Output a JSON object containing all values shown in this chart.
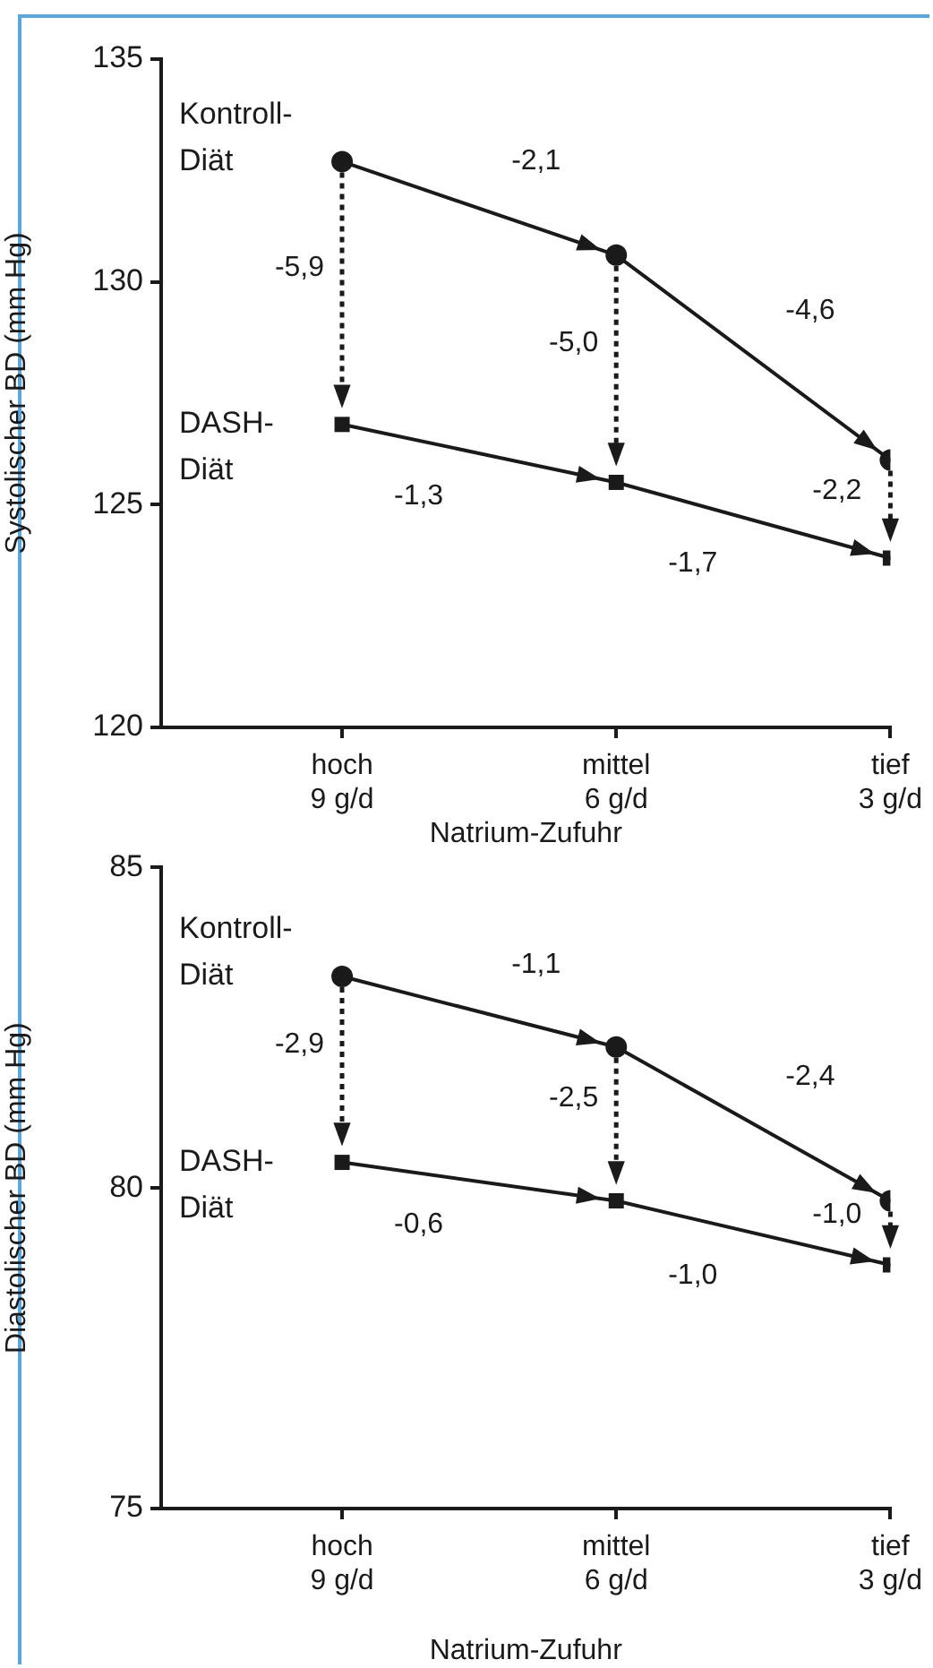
{
  "chart_data": [
    {
      "type": "line",
      "ylabel": "Systolischer BD (mm Hg)",
      "xlabel": "Natrium-Zufuhr",
      "categories": [
        "hoch\n9 g/d",
        "mittel\n6 g/d",
        "tief\n3 g/d"
      ],
      "ylim": [
        120,
        135
      ],
      "yticks": [
        120,
        125,
        130,
        135
      ],
      "grid": false,
      "legend": false,
      "line_style": "solid",
      "series": [
        {
          "name": "Kontroll-\nDiät",
          "color": "#1a1a1a",
          "marker": "circle",
          "values": [
            132.7,
            130.6,
            126.0
          ]
        },
        {
          "name": "DASH-\nDiät",
          "color": "#1a1a1a",
          "marker": "square",
          "values": [
            126.8,
            125.5,
            123.8
          ]
        }
      ],
      "annotations": [
        "-5,9",
        "-5,0",
        "-2,2",
        "-2,1",
        "-4,6",
        "-1,3",
        "-1,7"
      ]
    },
    {
      "type": "line",
      "ylabel": "Diastolischer BD (mm Hg)",
      "xlabel": "Natrium-Zufuhr",
      "categories": [
        "hoch\n9 g/d",
        "mittel\n6 g/d",
        "tief\n3 g/d"
      ],
      "ylim": [
        75,
        85
      ],
      "yticks": [
        75,
        80,
        85
      ],
      "grid": false,
      "legend": false,
      "line_style": "solid",
      "series": [
        {
          "name": "Kontroll-\nDiät",
          "color": "#1a1a1a",
          "marker": "circle",
          "values": [
            83.3,
            82.2,
            79.8
          ]
        },
        {
          "name": "DASH-\nDiät",
          "color": "#1a1a1a",
          "marker": "square",
          "values": [
            80.4,
            79.8,
            78.8
          ]
        }
      ],
      "annotations": [
        "-2,9",
        "-2,5",
        "-1,0",
        "-1,1",
        "-2,4",
        "-0,6",
        "-1,0"
      ]
    }
  ]
}
